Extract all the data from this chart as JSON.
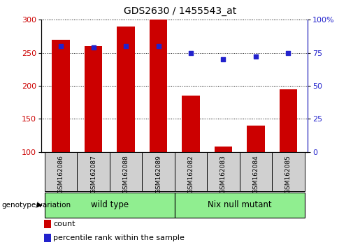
{
  "title": "GDS2630 / 1455543_at",
  "samples": [
    "GSM162086",
    "GSM162087",
    "GSM162088",
    "GSM162089",
    "GSM162082",
    "GSM162083",
    "GSM162084",
    "GSM162085"
  ],
  "counts": [
    270,
    260,
    290,
    300,
    185,
    108,
    140,
    195
  ],
  "percentiles": [
    80,
    79,
    80,
    80,
    75,
    70,
    72,
    75
  ],
  "bar_color": "#cc0000",
  "dot_color": "#2222cc",
  "ylim_left": [
    100,
    300
  ],
  "ylim_right": [
    0,
    100
  ],
  "yticks_left": [
    100,
    150,
    200,
    250,
    300
  ],
  "yticks_right": [
    0,
    25,
    50,
    75,
    100
  ],
  "ytick_labels_right": [
    "0",
    "25",
    "50",
    "75",
    "100%"
  ],
  "group1_label": "wild type",
  "group2_label": "Nix null mutant",
  "group_color": "#90ee90",
  "group_label": "genotype/variation",
  "legend_count": "count",
  "legend_pct": "percentile rank within the sample",
  "bar_width": 0.55,
  "bg_color": "#ffffff",
  "tick_label_area_color": "#d0d0d0",
  "group1_indices": [
    0,
    1,
    2,
    3
  ],
  "group2_indices": [
    4,
    5,
    6,
    7
  ]
}
